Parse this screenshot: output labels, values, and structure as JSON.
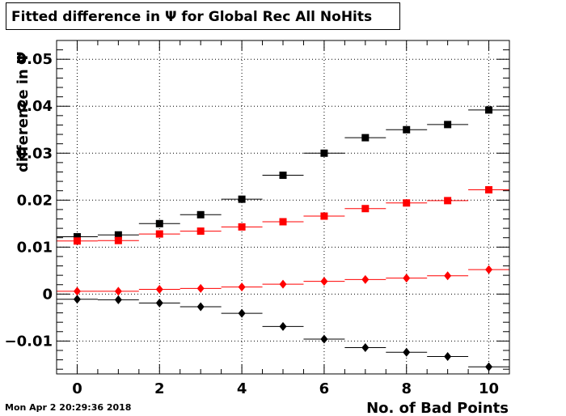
{
  "title": "Fitted difference in  Ψ  for Global Rec All NoHits",
  "timestamp": "Mon Apr  2 20:29:36 2018",
  "chart_data": {
    "type": "scatter",
    "title": "Fitted difference in  Ψ  for Global Rec All NoHits",
    "xlabel": "No. of Bad Points",
    "ylabel": "difference in Ψ",
    "xlim": [
      -0.5,
      10.5
    ],
    "ylim": [
      -0.017,
      0.054
    ],
    "grid": true,
    "x_ticks": [
      0,
      2,
      4,
      6,
      8,
      10
    ],
    "x_tick_labels": [
      "0",
      "2",
      "4",
      "6",
      "8",
      "10"
    ],
    "y_ticks": [
      -0.01,
      0,
      0.01,
      0.02,
      0.03,
      0.04,
      0.05
    ],
    "y_tick_labels": [
      "−0.01",
      "0",
      "0.01",
      "0.02",
      "0.03",
      "0.04",
      "0.05"
    ],
    "x_error": 0.5,
    "series": [
      {
        "marker": "square",
        "color": "#000000",
        "x": [
          0,
          1,
          2,
          3,
          4,
          5,
          6,
          7,
          8,
          9,
          10
        ],
        "y": [
          0.0122,
          0.0126,
          0.015,
          0.0169,
          0.0202,
          0.0253,
          0.03,
          0.0333,
          0.035,
          0.0361,
          0.0392
        ]
      },
      {
        "marker": "square",
        "color": "#ff0000",
        "x": [
          0,
          1,
          2,
          3,
          4,
          5,
          6,
          7,
          8,
          9,
          10
        ],
        "y": [
          0.0113,
          0.0114,
          0.0128,
          0.0134,
          0.0143,
          0.0154,
          0.0166,
          0.0182,
          0.0194,
          0.0199,
          0.0222
        ]
      },
      {
        "marker": "diamond",
        "color": "#ff0000",
        "x": [
          0,
          1,
          2,
          3,
          4,
          5,
          6,
          7,
          8,
          9,
          10
        ],
        "y": [
          0.0006,
          0.0006,
          0.001,
          0.0012,
          0.0015,
          0.0021,
          0.0027,
          0.0031,
          0.0034,
          0.0039,
          0.0052
        ]
      },
      {
        "marker": "diamond",
        "color": "#000000",
        "x": [
          0,
          1,
          2,
          3,
          4,
          5,
          6,
          7,
          8,
          9,
          10
        ],
        "y": [
          -0.0011,
          -0.0012,
          -0.0019,
          -0.0027,
          -0.0041,
          -0.0069,
          -0.0096,
          -0.0114,
          -0.0124,
          -0.0133,
          -0.0155
        ]
      }
    ]
  }
}
